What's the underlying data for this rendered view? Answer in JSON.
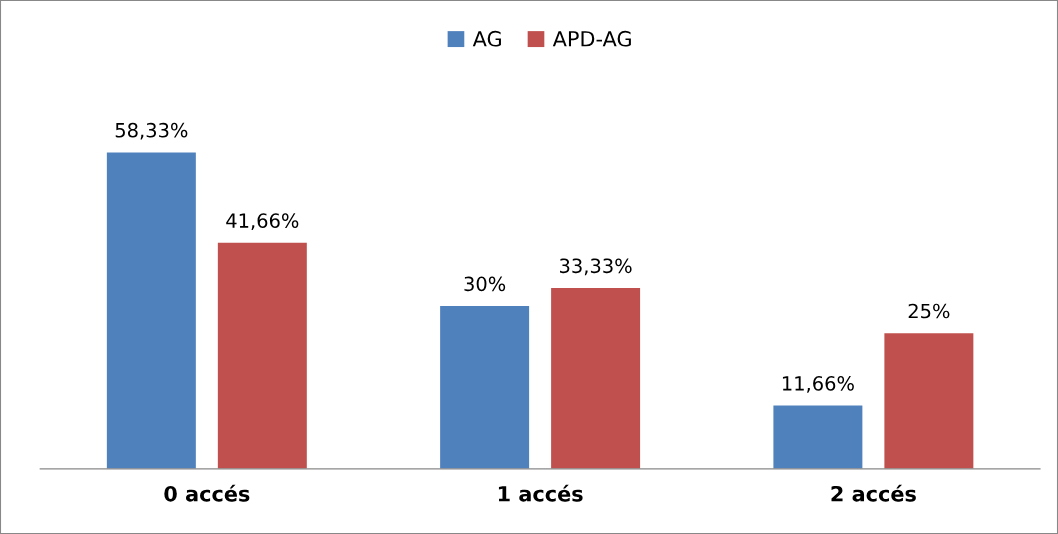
{
  "chart_data": {
    "type": "bar",
    "categories": [
      "0 accés",
      "1 accés",
      "2 accés"
    ],
    "series": [
      {
        "name": "AG",
        "color": "#4f81bd",
        "values": [
          58.33,
          30,
          11.66
        ],
        "value_labels": [
          "58,33%",
          "30%",
          "11,66%"
        ]
      },
      {
        "name": "APD-AG",
        "color": "#c0504d",
        "values": [
          41.66,
          33.33,
          25
        ],
        "value_labels": [
          "41,66%",
          "33,33%",
          "25%"
        ]
      }
    ],
    "legend": "top",
    "grid": false
  }
}
